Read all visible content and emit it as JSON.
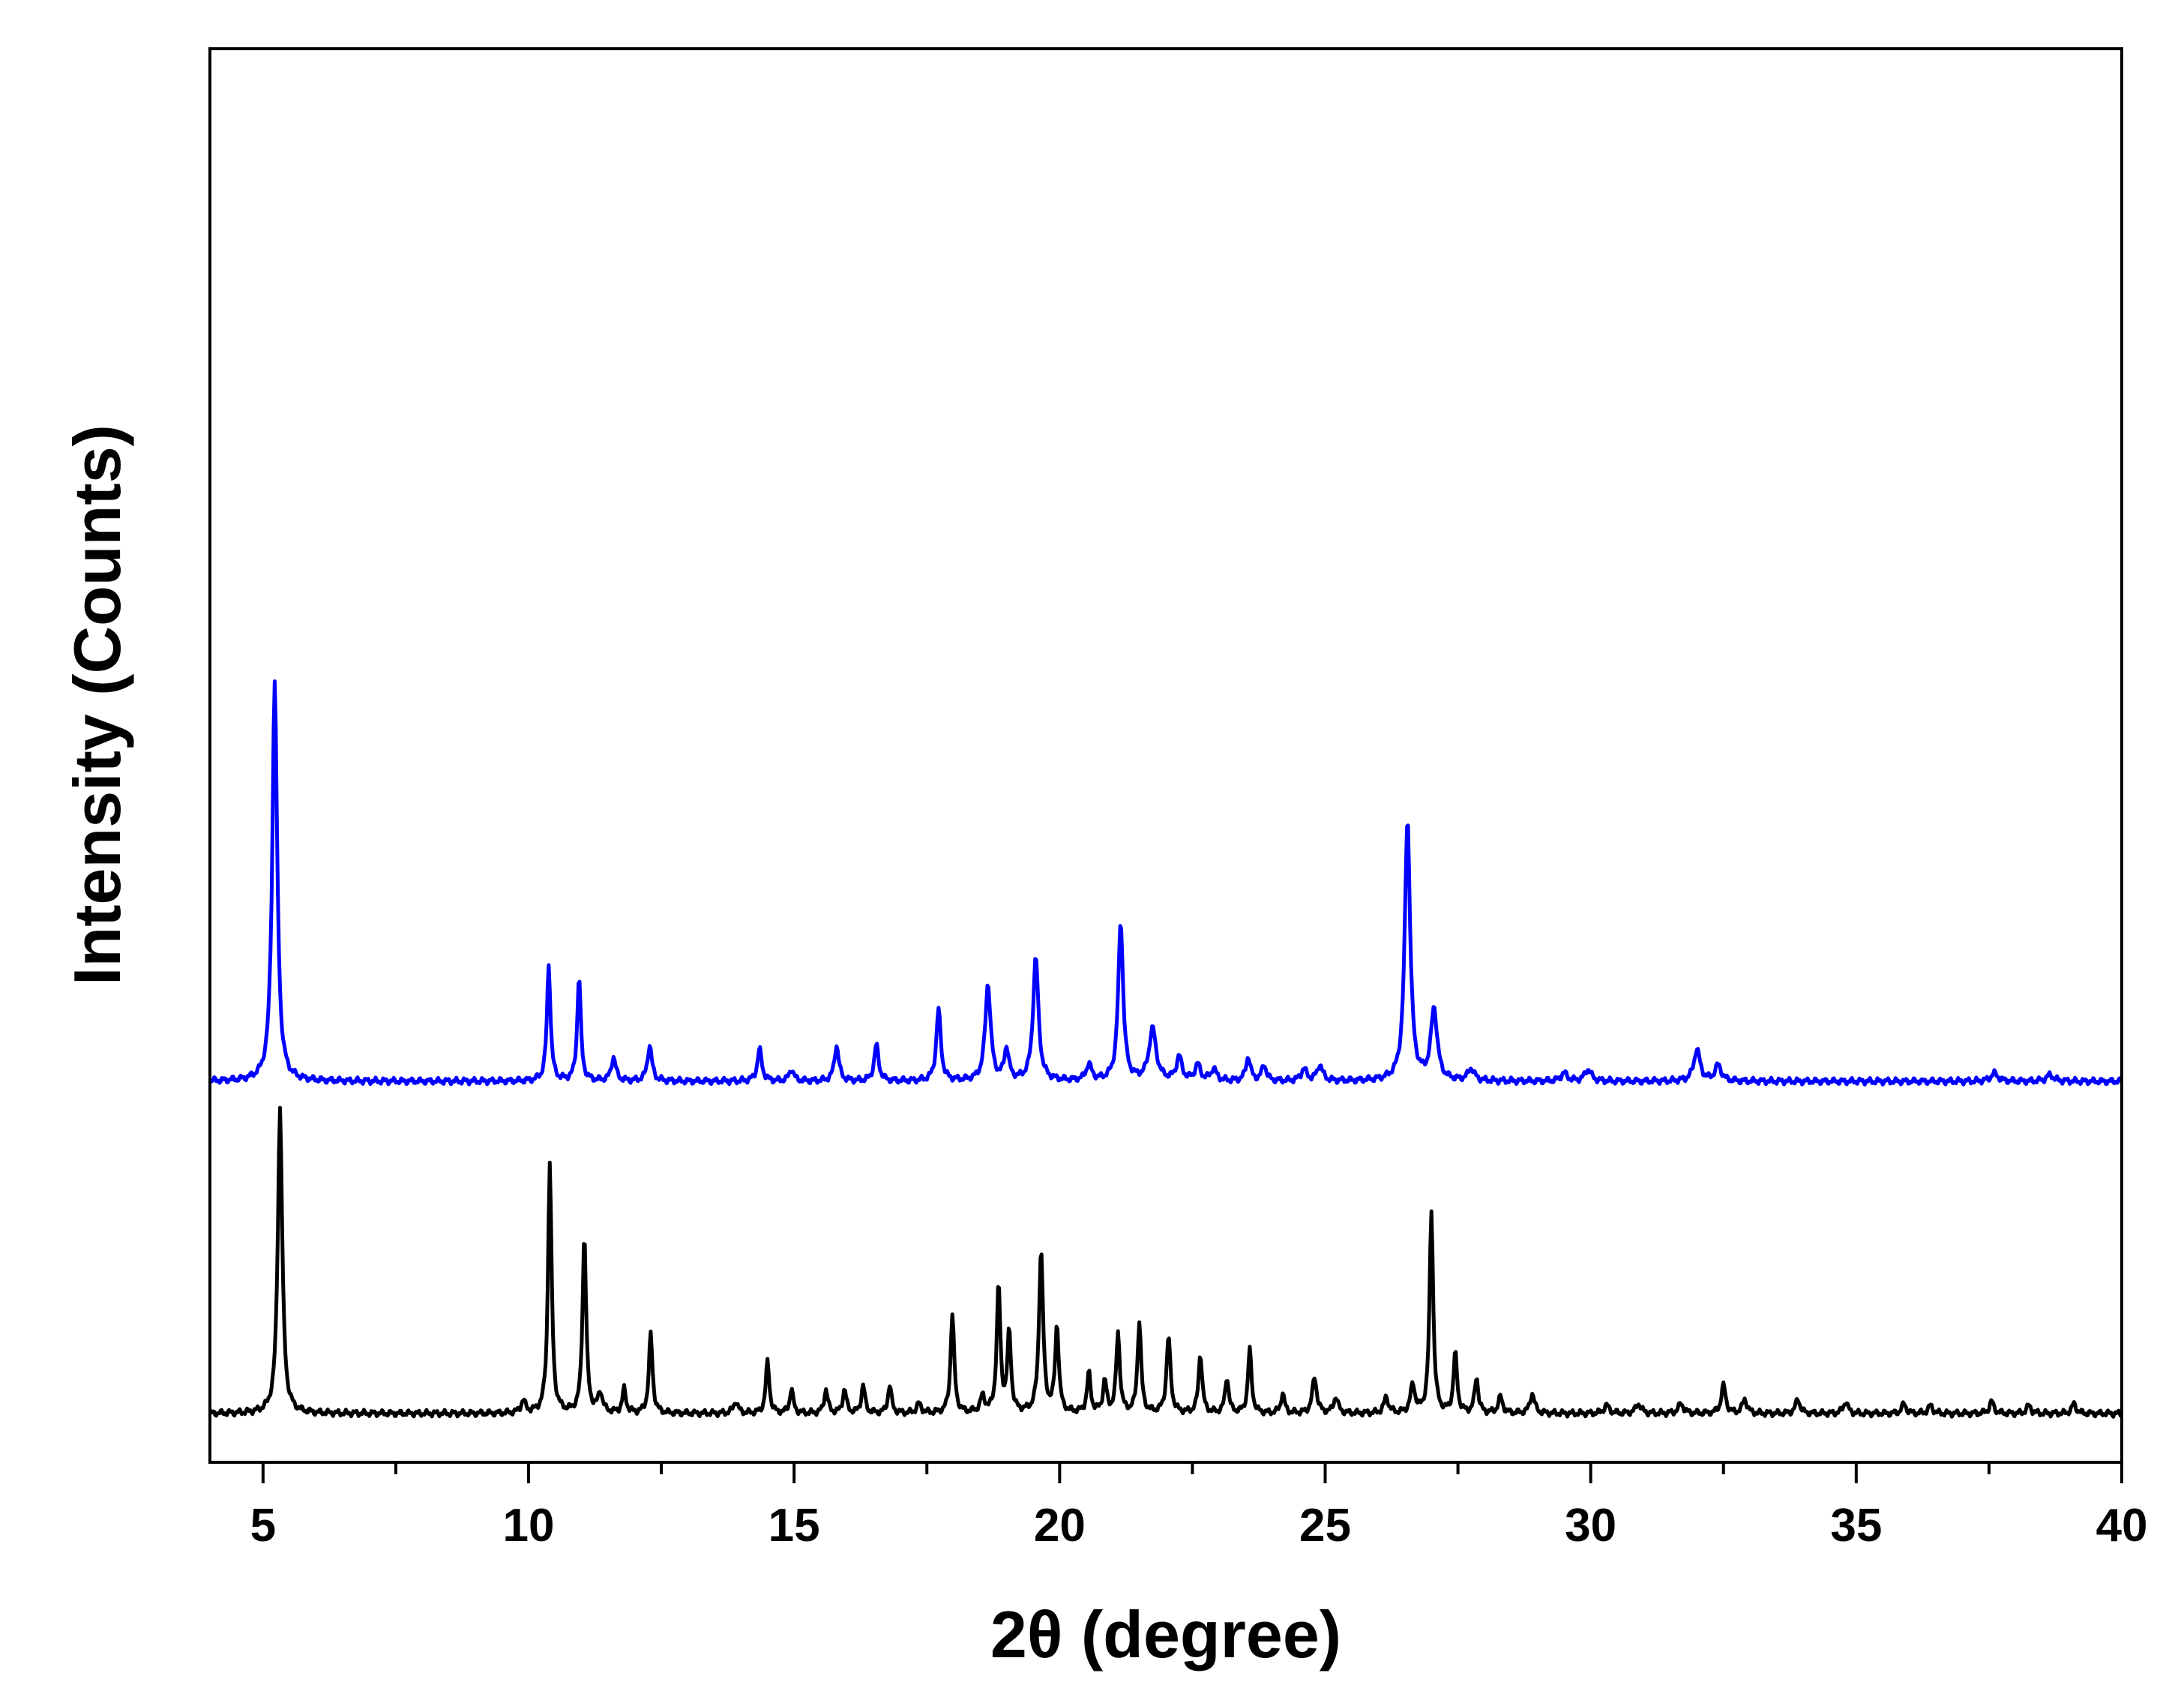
{
  "chart_data": {
    "type": "line",
    "title": "",
    "xlabel": "2θ (degree)",
    "ylabel": "Intensity (Counts)",
    "xlim": [
      4,
      40
    ],
    "ylim": [
      0,
      1
    ],
    "grid": false,
    "legend": "none",
    "y_tick_labels": false,
    "x_ticks": [
      5,
      10,
      15,
      20,
      25,
      30,
      35,
      40
    ],
    "x_tick_labels": [
      "5",
      "10",
      "15",
      "20",
      "25",
      "30",
      "35",
      "40"
    ],
    "series": [
      {
        "color": "#0000ff",
        "baseline": 0.418,
        "peaks": [
          [
            5.22,
            0.505,
            0.055
          ],
          [
            10.38,
            0.147,
            0.04
          ],
          [
            10.95,
            0.132,
            0.04
          ],
          [
            11.6,
            0.03,
            0.05
          ],
          [
            12.28,
            0.045,
            0.05
          ],
          [
            14.35,
            0.04,
            0.05
          ],
          [
            14.95,
            0.015,
            0.05
          ],
          [
            15.8,
            0.045,
            0.05
          ],
          [
            16.55,
            0.045,
            0.05
          ],
          [
            17.72,
            0.09,
            0.05
          ],
          [
            18.65,
            0.122,
            0.06
          ],
          [
            19.0,
            0.04,
            0.05
          ],
          [
            19.55,
            0.155,
            0.06
          ],
          [
            20.55,
            0.02,
            0.06
          ],
          [
            21.15,
            0.2,
            0.055
          ],
          [
            21.75,
            0.065,
            0.08
          ],
          [
            22.25,
            0.03,
            0.06
          ],
          [
            22.6,
            0.02,
            0.06
          ],
          [
            22.9,
            0.015,
            0.06
          ],
          [
            23.55,
            0.03,
            0.05
          ],
          [
            23.85,
            0.02,
            0.05
          ],
          [
            24.6,
            0.015,
            0.06
          ],
          [
            24.9,
            0.02,
            0.06
          ],
          [
            26.55,
            0.33,
            0.06
          ],
          [
            27.05,
            0.09,
            0.07
          ],
          [
            27.75,
            0.015,
            0.07
          ],
          [
            29.5,
            0.01,
            0.07
          ],
          [
            29.95,
            0.015,
            0.07
          ],
          [
            32.0,
            0.04,
            0.07
          ],
          [
            32.4,
            0.02,
            0.07
          ],
          [
            37.6,
            0.01,
            0.08
          ],
          [
            38.65,
            0.008,
            0.08
          ]
        ]
      },
      {
        "color": "#000000",
        "baseline": 0.0,
        "peaks": [
          [
            5.32,
            0.385,
            0.05
          ],
          [
            9.9,
            0.015,
            0.05
          ],
          [
            10.4,
            0.315,
            0.04
          ],
          [
            11.05,
            0.225,
            0.04
          ],
          [
            11.35,
            0.025,
            0.05
          ],
          [
            11.8,
            0.03,
            0.04
          ],
          [
            12.3,
            0.1,
            0.04
          ],
          [
            13.9,
            0.015,
            0.05
          ],
          [
            14.5,
            0.065,
            0.04
          ],
          [
            14.95,
            0.03,
            0.04
          ],
          [
            15.6,
            0.03,
            0.04
          ],
          [
            15.95,
            0.03,
            0.04
          ],
          [
            16.3,
            0.035,
            0.04
          ],
          [
            16.8,
            0.035,
            0.04
          ],
          [
            17.35,
            0.012,
            0.05
          ],
          [
            17.98,
            0.125,
            0.04
          ],
          [
            18.55,
            0.02,
            0.05
          ],
          [
            18.85,
            0.16,
            0.04
          ],
          [
            19.05,
            0.1,
            0.04
          ],
          [
            19.65,
            0.205,
            0.045
          ],
          [
            19.95,
            0.11,
            0.04
          ],
          [
            20.55,
            0.05,
            0.04
          ],
          [
            20.85,
            0.04,
            0.04
          ],
          [
            21.1,
            0.1,
            0.04
          ],
          [
            21.5,
            0.115,
            0.04
          ],
          [
            22.05,
            0.095,
            0.045
          ],
          [
            22.65,
            0.075,
            0.04
          ],
          [
            23.15,
            0.045,
            0.04
          ],
          [
            23.58,
            0.08,
            0.04
          ],
          [
            24.2,
            0.025,
            0.04
          ],
          [
            24.8,
            0.045,
            0.05
          ],
          [
            25.2,
            0.02,
            0.05
          ],
          [
            26.15,
            0.02,
            0.05
          ],
          [
            26.65,
            0.035,
            0.05
          ],
          [
            27.0,
            0.255,
            0.04
          ],
          [
            27.45,
            0.075,
            0.04
          ],
          [
            27.85,
            0.045,
            0.04
          ],
          [
            28.3,
            0.02,
            0.05
          ],
          [
            28.9,
            0.025,
            0.05
          ],
          [
            30.3,
            0.01,
            0.06
          ],
          [
            30.9,
            0.012,
            0.06
          ],
          [
            31.7,
            0.012,
            0.06
          ],
          [
            32.5,
            0.035,
            0.05
          ],
          [
            32.9,
            0.018,
            0.05
          ],
          [
            33.9,
            0.018,
            0.05
          ],
          [
            34.8,
            0.015,
            0.05
          ],
          [
            35.9,
            0.012,
            0.05
          ],
          [
            36.4,
            0.01,
            0.05
          ],
          [
            37.55,
            0.015,
            0.05
          ],
          [
            38.25,
            0.01,
            0.05
          ],
          [
            39.1,
            0.012,
            0.05
          ]
        ]
      }
    ]
  }
}
